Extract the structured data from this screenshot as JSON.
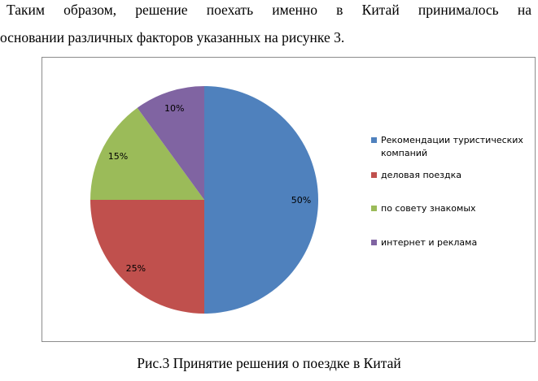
{
  "paragraph": {
    "line1": "Таким образом, решение поехать именно в Китай принималось на",
    "line2": "основании различных факторов указанных на рисунке 3."
  },
  "caption": "Рис.3 Принятие решения о поездке в Китай",
  "chart_data": {
    "type": "pie",
    "title": "",
    "slices": [
      {
        "label": "Рекомендации туристических компаний",
        "value": 50,
        "data_label": "50%",
        "color": "#4F81BD"
      },
      {
        "label": "деловая поездка",
        "value": 25,
        "data_label": "25%",
        "color": "#C0504D"
      },
      {
        "label": "по совету знакомых",
        "value": 15,
        "data_label": "15%",
        "color": "#9BBB59"
      },
      {
        "label": "интернет и реклама",
        "value": 10,
        "data_label": "10%",
        "color": "#8064A2"
      }
    ],
    "legend_position": "right"
  }
}
